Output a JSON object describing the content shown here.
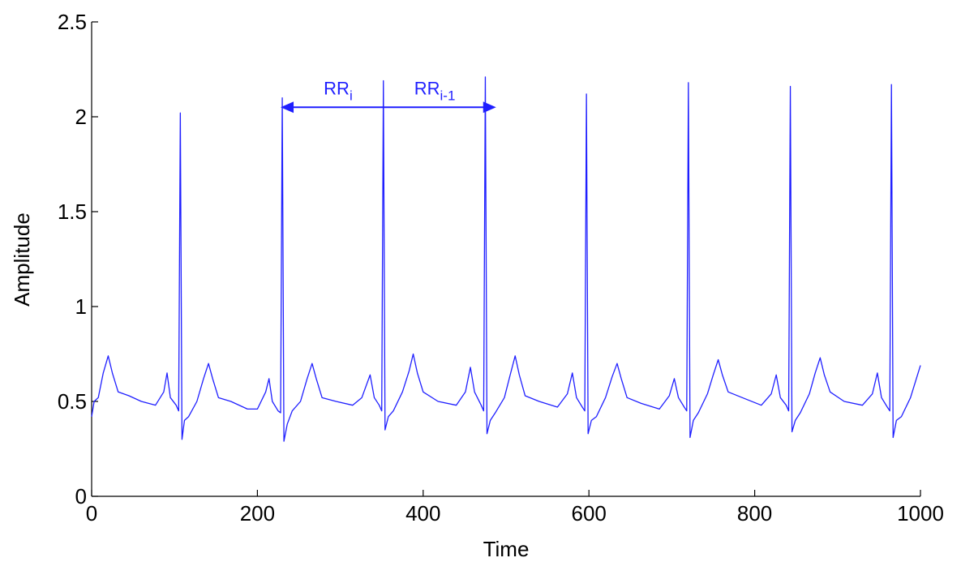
{
  "chart_data": {
    "type": "line",
    "xlabel": "Time",
    "ylabel": "Amplitude",
    "xlim": [
      0,
      1000
    ],
    "ylim": [
      0,
      2.5
    ],
    "xticks": [
      0,
      200,
      400,
      600,
      800,
      1000
    ],
    "yticks": [
      0,
      0.5,
      1,
      1.5,
      2,
      2.5
    ],
    "grid": false,
    "x": [
      0,
      3,
      8,
      14,
      20,
      25,
      32,
      45,
      60,
      77,
      87,
      91,
      95,
      102,
      105,
      107,
      109,
      112,
      117,
      127,
      135,
      141,
      146,
      153,
      168,
      188,
      200,
      210,
      214,
      218,
      225,
      228,
      230,
      232,
      236,
      242,
      252,
      260,
      266,
      271,
      278,
      295,
      315,
      326,
      336,
      341,
      347,
      350,
      352,
      354,
      358,
      364,
      375,
      383,
      388,
      393,
      400,
      418,
      440,
      451,
      457,
      462,
      470,
      473,
      475,
      477,
      481,
      487,
      498,
      505,
      511,
      516,
      523,
      540,
      562,
      574,
      580,
      585,
      592,
      595,
      597,
      599,
      603,
      609,
      620,
      628,
      634,
      639,
      646,
      663,
      685,
      697,
      703,
      708,
      715,
      718,
      720,
      722,
      726,
      732,
      743,
      750,
      756,
      761,
      768,
      785,
      808,
      820,
      826,
      831,
      838,
      841,
      843,
      845,
      849,
      855,
      866,
      873,
      879,
      884,
      891,
      908,
      930,
      942,
      948,
      953,
      960,
      963,
      965,
      967,
      971,
      977,
      988,
      1000
    ],
    "series": [
      {
        "color": "#1f1fff",
        "values": [
          0.42,
          0.5,
          0.52,
          0.65,
          0.74,
          0.65,
          0.55,
          0.53,
          0.5,
          0.48,
          0.55,
          0.65,
          0.52,
          0.48,
          0.45,
          2.02,
          0.3,
          0.4,
          0.42,
          0.5,
          0.62,
          0.7,
          0.62,
          0.52,
          0.5,
          0.46,
          0.46,
          0.55,
          0.62,
          0.5,
          0.45,
          0.44,
          2.1,
          0.29,
          0.38,
          0.45,
          0.5,
          0.62,
          0.7,
          0.62,
          0.52,
          0.5,
          0.48,
          0.52,
          0.64,
          0.52,
          0.48,
          0.45,
          2.19,
          0.35,
          0.42,
          0.45,
          0.55,
          0.66,
          0.75,
          0.65,
          0.55,
          0.5,
          0.48,
          0.55,
          0.68,
          0.55,
          0.48,
          0.45,
          2.21,
          0.33,
          0.4,
          0.44,
          0.52,
          0.64,
          0.74,
          0.64,
          0.53,
          0.5,
          0.47,
          0.54,
          0.65,
          0.52,
          0.47,
          0.45,
          2.12,
          0.33,
          0.4,
          0.42,
          0.52,
          0.63,
          0.7,
          0.62,
          0.52,
          0.49,
          0.46,
          0.53,
          0.62,
          0.52,
          0.47,
          0.45,
          2.18,
          0.31,
          0.4,
          0.44,
          0.54,
          0.64,
          0.72,
          0.64,
          0.55,
          0.52,
          0.48,
          0.54,
          0.64,
          0.52,
          0.48,
          0.45,
          2.16,
          0.34,
          0.4,
          0.44,
          0.54,
          0.65,
          0.73,
          0.64,
          0.55,
          0.5,
          0.48,
          0.54,
          0.65,
          0.52,
          0.47,
          0.45,
          2.17,
          0.31,
          0.4,
          0.42,
          0.52,
          0.69
        ]
      }
    ],
    "arrow": {
      "x": [
        228,
        488
      ],
      "y": 2.05,
      "color": "#1f1fff"
    },
    "annotations": [
      {
        "text": "RR",
        "subscript": "i"
      },
      {
        "text": "RR",
        "subscript": "i-1"
      }
    ]
  }
}
